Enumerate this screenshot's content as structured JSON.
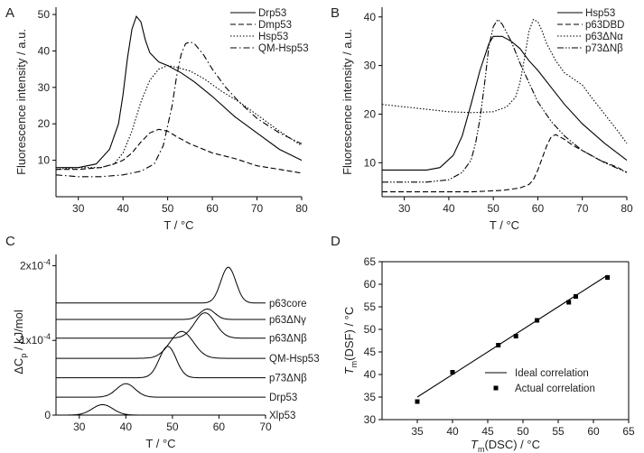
{
  "panels": {
    "A": {
      "letter": "A",
      "chart_data": {
        "type": "line",
        "xlabel": "T / °C",
        "ylabel": "Fluorescence intensity / a.u.",
        "xlim": [
          25,
          80
        ],
        "ylim": [
          0,
          52
        ],
        "xticks": [
          30,
          40,
          50,
          60,
          70,
          80
        ],
        "yticks": [
          10,
          20,
          30,
          40,
          50
        ],
        "legend_position": "top-right",
        "series": [
          {
            "name": "Drp53",
            "style": "solid",
            "x": [
              25,
              30,
              34,
              37,
              39,
              40,
              41,
              42,
              43,
              44,
              45,
              46,
              48,
              50,
              53,
              56,
              60,
              65,
              70,
              75,
              80
            ],
            "y": [
              8,
              8,
              9,
              13,
              20,
              28,
              38,
              46,
              49.5,
              48,
              43,
              39.5,
              37,
              36,
              34,
              31.5,
              27.5,
              22,
              17.5,
              13,
              10
            ]
          },
          {
            "name": "Dmp53",
            "style": "dashed",
            "x": [
              25,
              30,
              35,
              38,
              40,
              42,
              44,
              46,
              48,
              50,
              52,
              55,
              60,
              65,
              70,
              75,
              80
            ],
            "y": [
              7.5,
              7.5,
              8,
              9,
              10,
              12,
              15,
              17.5,
              18.5,
              18,
              16.5,
              14.5,
              12,
              10.5,
              8.5,
              7.5,
              6.5
            ]
          },
          {
            "name": "Hsp53",
            "style": "dotted",
            "x": [
              25,
              30,
              35,
              38,
              40,
              42,
              44,
              46,
              48,
              50,
              52,
              55,
              58,
              62,
              66,
              70,
              75,
              80
            ],
            "y": [
              7.5,
              8,
              8,
              9,
              12,
              18,
              26,
              32,
              35,
              36,
              35.5,
              34.5,
              32.5,
              29,
              26,
              22.5,
              18,
              14
            ]
          },
          {
            "name": "QM-Hsp53",
            "style": "dash-dot",
            "x": [
              25,
              30,
              35,
              40,
              44,
              47,
              49,
              51,
              52,
              53,
              54,
              55,
              56,
              58,
              60,
              63,
              66,
              70,
              75,
              80
            ],
            "y": [
              6,
              5.5,
              5.5,
              6,
              7,
              9,
              14,
              25,
              33,
              39,
              42,
              42.5,
              42,
              39,
              35,
              30,
              26,
              21.5,
              17.5,
              14.5
            ]
          }
        ]
      }
    },
    "B": {
      "letter": "B",
      "chart_data": {
        "type": "line",
        "xlabel": "T / °C",
        "ylabel": "Fluorescence intensity / a.u.",
        "xlim": [
          25,
          80
        ],
        "ylim": [
          3,
          42
        ],
        "xticks": [
          30,
          40,
          50,
          60,
          70,
          80
        ],
        "yticks": [
          10,
          20,
          30,
          40
        ],
        "legend_position": "top-right",
        "series": [
          {
            "name": "Hsp53",
            "style": "solid",
            "x": [
              25,
              30,
              35,
              38,
              41,
              43,
              45,
              47,
              49,
              50,
              52,
              54,
              56,
              58,
              60,
              63,
              66,
              70,
              75,
              80
            ],
            "y": [
              8.5,
              8.5,
              8.5,
              9,
              11.5,
              15.5,
              22,
              29,
              34.5,
              36,
              36,
              35,
              33.5,
              31,
              29,
              25.5,
              22,
              18,
              14,
              10.5
            ]
          },
          {
            "name": "p63DBD",
            "style": "dashed",
            "x": [
              25,
              35,
              45,
              52,
              56,
              58,
              59,
              60,
              61,
              62,
              63,
              64,
              66,
              68,
              70,
              74,
              78,
              80
            ],
            "y": [
              4,
              4,
              4,
              4.3,
              4.8,
              5.5,
              6.5,
              8.5,
              11,
              13.5,
              15.3,
              15.8,
              14.8,
              13.5,
              12.5,
              10.5,
              9,
              8
            ]
          },
          {
            "name": "p63ΔNα",
            "style": "dotted",
            "x": [
              25,
              30,
              35,
              40,
              45,
              50,
              53,
              55,
              56,
              57,
              58,
              59,
              60,
              61,
              62,
              64,
              66,
              70,
              72,
              75,
              78,
              80
            ],
            "y": [
              22,
              21.5,
              21,
              20.5,
              20.3,
              20.5,
              21.5,
              23.5,
              26.5,
              31.5,
              37,
              39.5,
              39,
              37,
              34.5,
              31,
              28.5,
              26,
              23.5,
              20,
              16.5,
              14
            ]
          },
          {
            "name": "p73ΔNβ",
            "style": "dash-dot-dot",
            "x": [
              25,
              30,
              35,
              40,
              43,
              45,
              46,
              47,
              48,
              49,
              50,
              51,
              52,
              54,
              56,
              58,
              60,
              63,
              66,
              70,
              75,
              80
            ],
            "y": [
              6,
              6,
              6,
              6.5,
              8,
              10.5,
              14,
              19,
              26,
              34,
              38,
              39.5,
              38.5,
              35,
              30.5,
              26.5,
              22.5,
              18.5,
              15.5,
              12.5,
              10,
              8
            ]
          }
        ]
      }
    },
    "C": {
      "letter": "C",
      "chart_data": {
        "type": "line",
        "xlabel": "T / °C",
        "ylabel": "ΔCp / kJ/mol",
        "ylabel_main": "ΔC",
        "ylabel_sub": "p",
        "ylabel_rest": " / kJ/mol",
        "xlim": [
          25,
          70
        ],
        "ylim": [
          0,
          2.15
        ],
        "xticks": [
          30,
          40,
          50,
          60,
          70
        ],
        "yticks": [
          {
            "value": 0,
            "label": "0"
          },
          {
            "value": 1,
            "label": "1x10",
            "exp": "-4"
          },
          {
            "value": 2,
            "label": "2x10",
            "exp": "-4"
          }
        ],
        "y_scale_note": "units of 1x10^-4 kJ/mol",
        "series": [
          {
            "name": "p63core",
            "baseline": 1.5,
            "peaks": [
              {
                "center": 62,
                "height": 0.48,
                "width": 1.6
              }
            ]
          },
          {
            "name": "p63ΔNγ",
            "baseline": 1.28,
            "peaks": [
              {
                "center": 57.5,
                "height": 0.14,
                "width": 1.6
              }
            ]
          },
          {
            "name": "p63ΔNβ",
            "baseline": 1.03,
            "peaks": [
              {
                "center": 57,
                "height": 0.34,
                "width": 2.2
              }
            ]
          },
          {
            "name": "QM-Hsp53",
            "baseline": 0.76,
            "peaks": [
              {
                "center": 52,
                "height": 0.36,
                "width": 2.5
              }
            ]
          },
          {
            "name": "p73ΔNβ",
            "baseline": 0.5,
            "peaks": [
              {
                "center": 49,
                "height": 0.42,
                "width": 1.8
              }
            ]
          },
          {
            "name": "Drp53",
            "baseline": 0.24,
            "peaks": [
              {
                "center": 40,
                "height": 0.18,
                "width": 2.0
              }
            ]
          },
          {
            "name": "Xlp53",
            "baseline": 0.0,
            "peaks": [
              {
                "center": 35,
                "height": 0.14,
                "width": 2.2
              }
            ]
          }
        ]
      }
    },
    "D": {
      "letter": "D",
      "chart_data": {
        "type": "scatter",
        "xlabel_main": "T",
        "xlabel_sub": "m",
        "xlabel_rest": "(DSC) / °C",
        "ylabel_main": "T",
        "ylabel_sub": "m",
        "ylabel_rest": "(DSF) / °C",
        "xlim": [
          30,
          65
        ],
        "ylim": [
          30,
          65
        ],
        "xticks": [
          35,
          40,
          45,
          50,
          55,
          60,
          65
        ],
        "yticks": [
          30,
          35,
          40,
          45,
          50,
          55,
          60,
          65
        ],
        "legend_position": "bottom-right",
        "series": [
          {
            "name": "Ideal correlation",
            "kind": "line",
            "x": [
              35,
              62
            ],
            "y": [
              35,
              62
            ]
          },
          {
            "name": "Actual correlation",
            "kind": "points",
            "x": [
              35,
              40,
              46.5,
              49,
              52,
              56.5,
              57.5,
              62
            ],
            "y": [
              34,
              40.5,
              46.5,
              48.5,
              52,
              56,
              57.3,
              61.5
            ]
          }
        ]
      }
    }
  }
}
